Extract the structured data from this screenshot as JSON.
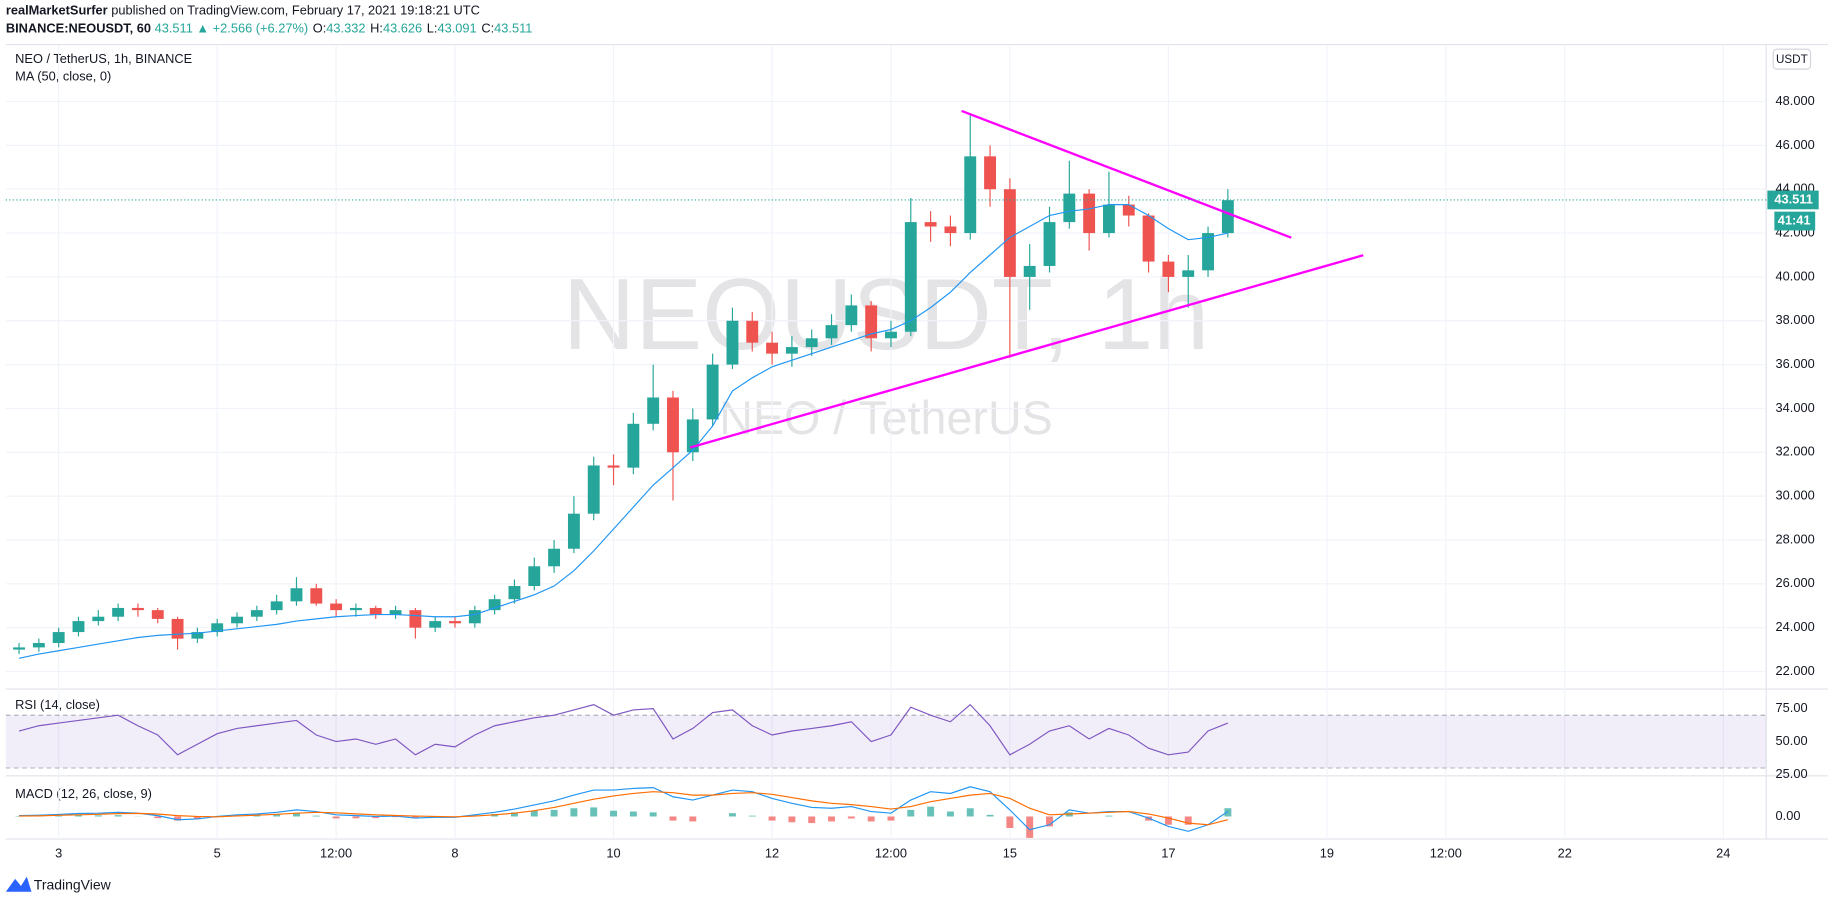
{
  "header": {
    "author": "realMarketSurfer",
    "published": "published on TradingView.com, February 17, 2021 19:18:21 UTC",
    "symbol": "BINANCE:NEOUSDT, 60",
    "last": "43.511",
    "change": "▲ +2.566 (+6.27%)",
    "ohlc": [
      {
        "label": "O:",
        "value": "43.332"
      },
      {
        "label": "H:",
        "value": "43.626"
      },
      {
        "label": "L:",
        "value": "43.091"
      },
      {
        "label": "C:",
        "value": "43.511"
      }
    ]
  },
  "footer": {
    "logo": "TradingView"
  },
  "chart_data": {
    "type": "candlestick",
    "title": "NEO / TetherUS, 1h, BINANCE",
    "watermark": "NEOUSDT, 1h",
    "watermark_sub": "NEO / TetherUS",
    "currency": "USDT",
    "up_color": "#26a69a",
    "down_color": "#ef5350",
    "grid": true,
    "x": [
      -12,
      -6,
      0,
      6,
      12,
      18,
      24,
      30,
      36,
      42,
      48,
      54,
      60,
      66,
      72,
      78,
      84,
      90,
      96,
      102,
      108,
      114,
      120,
      126,
      132,
      138,
      144,
      150,
      156,
      162,
      168,
      174,
      180,
      186,
      192,
      198,
      204,
      210,
      216,
      222,
      228,
      234,
      240,
      246,
      252,
      258,
      264,
      270,
      276,
      282,
      288,
      294,
      300,
      306,
      312,
      318,
      324,
      330,
      336,
      342,
      348,
      354
    ],
    "open": [
      23.0,
      23.1,
      23.3,
      23.8,
      24.3,
      24.5,
      24.9,
      24.8,
      24.4,
      23.5,
      23.8,
      24.2,
      24.5,
      24.8,
      25.2,
      25.8,
      25.1,
      24.8,
      24.9,
      24.6,
      24.8,
      24.0,
      24.3,
      24.2,
      24.8,
      25.3,
      25.9,
      26.8,
      27.6,
      29.2,
      31.4,
      31.3,
      33.3,
      34.5,
      32.0,
      33.5,
      36.0,
      38.0,
      37.0,
      36.5,
      36.8,
      37.2,
      37.8,
      38.7,
      37.2,
      37.5,
      42.5,
      42.3,
      42.0,
      45.5,
      44.0,
      40.0,
      40.5,
      42.5,
      43.8,
      42.0,
      43.3,
      42.8,
      40.7,
      40.0,
      40.3,
      42.0
    ],
    "high": [
      23.3,
      23.5,
      24.0,
      24.5,
      24.8,
      25.1,
      25.1,
      24.9,
      24.5,
      24.0,
      24.4,
      24.7,
      25.0,
      25.5,
      26.3,
      26.0,
      25.3,
      25.1,
      25.0,
      25.0,
      24.9,
      24.5,
      24.5,
      25.0,
      25.5,
      26.2,
      27.2,
      28.0,
      30.0,
      31.8,
      31.9,
      33.8,
      36.0,
      34.8,
      34.0,
      36.5,
      38.6,
      38.4,
      37.5,
      37.3,
      37.6,
      38.3,
      39.2,
      38.9,
      38.0,
      43.6,
      43.0,
      42.8,
      47.4,
      46.0,
      44.5,
      41.5,
      43.2,
      45.3,
      44.0,
      44.8,
      43.7,
      42.9,
      41.0,
      41.0,
      42.3,
      44.0
    ],
    "low": [
      22.8,
      22.9,
      23.1,
      23.6,
      24.1,
      24.3,
      24.5,
      24.2,
      23.0,
      23.3,
      23.6,
      24.0,
      24.3,
      24.6,
      25.0,
      25.0,
      24.5,
      24.5,
      24.4,
      24.4,
      23.5,
      23.8,
      24.0,
      24.0,
      24.6,
      25.1,
      25.7,
      26.5,
      27.4,
      28.9,
      30.5,
      31.0,
      33.0,
      29.8,
      31.6,
      33.2,
      35.8,
      36.6,
      36.0,
      35.9,
      36.4,
      36.9,
      37.5,
      36.6,
      36.8,
      37.3,
      41.6,
      41.4,
      41.7,
      43.2,
      36.3,
      38.5,
      40.2,
      42.2,
      41.2,
      41.8,
      42.3,
      40.2,
      39.3,
      38.6,
      40.0,
      41.8
    ],
    "close": [
      23.1,
      23.3,
      23.8,
      24.3,
      24.5,
      24.9,
      24.8,
      24.4,
      23.5,
      23.8,
      24.2,
      24.5,
      24.8,
      25.2,
      25.8,
      25.1,
      24.8,
      24.9,
      24.6,
      24.8,
      24.0,
      24.3,
      24.2,
      24.8,
      25.3,
      25.9,
      26.8,
      27.6,
      29.2,
      31.4,
      31.3,
      33.3,
      34.5,
      32.0,
      33.5,
      36.0,
      38.0,
      37.0,
      36.5,
      36.8,
      37.2,
      37.8,
      38.7,
      37.2,
      37.5,
      42.5,
      42.3,
      42.0,
      45.5,
      44.0,
      40.0,
      40.5,
      42.5,
      43.8,
      42.0,
      43.3,
      42.8,
      40.7,
      40.0,
      40.3,
      42.0,
      43.5
    ],
    "ma": {
      "name": "MA (50, close, 0)",
      "color": "#2196f3",
      "values": [
        22.6,
        22.8,
        22.95,
        23.1,
        23.25,
        23.4,
        23.55,
        23.65,
        23.7,
        23.75,
        23.85,
        23.95,
        24.05,
        24.15,
        24.3,
        24.4,
        24.5,
        24.55,
        24.6,
        24.6,
        24.55,
        24.5,
        24.5,
        24.6,
        24.9,
        25.2,
        25.5,
        25.9,
        26.6,
        27.5,
        28.5,
        29.5,
        30.5,
        31.3,
        32.1,
        33.2,
        34.8,
        35.4,
        35.9,
        36.2,
        36.5,
        36.8,
        37.1,
        37.4,
        37.6,
        38.0,
        38.6,
        39.3,
        40.2,
        41.0,
        41.8,
        42.3,
        42.8,
        43.0,
        43.1,
        43.3,
        43.3,
        42.8,
        42.2,
        41.7,
        41.8,
        42.0
      ]
    },
    "last_price": {
      "value": 43.511,
      "label": "43.511"
    },
    "countdown": "41:41",
    "trendlines": [
      {
        "x": [
          273.4,
          373.2
        ],
        "y": [
          47.57,
          41.79
        ],
        "color": "#ff00ff"
      },
      {
        "x": [
          191.2,
          395.0
        ],
        "y": [
          32.22,
          40.99
        ],
        "color": "#ff00ff"
      }
    ],
    "xlim": [
      -16,
      517
    ],
    "xticks": [
      {
        "value": 0,
        "label": "3"
      },
      {
        "value": 48,
        "label": "5"
      },
      {
        "value": 84,
        "label": "12:00"
      },
      {
        "value": 120,
        "label": "8"
      },
      {
        "value": 168,
        "label": "10"
      },
      {
        "value": 216,
        "label": "12"
      },
      {
        "value": 252,
        "label": "12:00"
      },
      {
        "value": 288,
        "label": "15"
      },
      {
        "value": 336,
        "label": "17"
      },
      {
        "value": 384,
        "label": "19"
      },
      {
        "value": 420,
        "label": "12:00"
      },
      {
        "value": 456,
        "label": "22"
      },
      {
        "value": 504,
        "label": "24"
      }
    ],
    "ylim": [
      21.2,
      50.6
    ],
    "yticks": [
      {
        "value": 22,
        "label": "22.000"
      },
      {
        "value": 24,
        "label": "24.000"
      },
      {
        "value": 26,
        "label": "26.000"
      },
      {
        "value": 28,
        "label": "28.000"
      },
      {
        "value": 30,
        "label": "30.000"
      },
      {
        "value": 32,
        "label": "32.000"
      },
      {
        "value": 34,
        "label": "34.000"
      },
      {
        "value": 36,
        "label": "36.000"
      },
      {
        "value": 38,
        "label": "38.000"
      },
      {
        "value": 40,
        "label": "40.000"
      },
      {
        "value": 42,
        "label": "42.000"
      },
      {
        "value": 44,
        "label": "44.000"
      },
      {
        "value": 46,
        "label": "46.000"
      },
      {
        "value": 48,
        "label": "48.000"
      }
    ],
    "rsi": {
      "title": "RSI (14, close)",
      "color": "#7e57c2",
      "bands": [
        30,
        70
      ],
      "ylim": [
        25,
        88
      ],
      "yticks": [
        {
          "value": 25,
          "label": "25.00"
        },
        {
          "value": 50,
          "label": "50.00"
        },
        {
          "value": 75,
          "label": "75.00"
        }
      ],
      "values": [
        58,
        62,
        64,
        66,
        68,
        70,
        62,
        55,
        40,
        48,
        56,
        60,
        62,
        64,
        66,
        55,
        50,
        52,
        48,
        52,
        40,
        48,
        46,
        55,
        62,
        65,
        68,
        70,
        74,
        78,
        70,
        74,
        75,
        52,
        60,
        72,
        74,
        62,
        55,
        58,
        60,
        62,
        65,
        50,
        55,
        76,
        70,
        65,
        78,
        62,
        40,
        48,
        58,
        62,
        52,
        60,
        55,
        45,
        40,
        42,
        58,
        64
      ]
    },
    "macd": {
      "title": "MACD (12, 26, close, 9)",
      "ylim": [
        -1.3,
        2.4
      ],
      "yticks": [
        {
          "value": 0,
          "label": "0.00"
        }
      ],
      "macd_color": "#2196f3",
      "signal_color": "#ff6d00",
      "hist_up_color": "#26a69a",
      "hist_down_color": "#ef5350",
      "macd": [
        0.05,
        0.08,
        0.12,
        0.18,
        0.2,
        0.25,
        0.2,
        0.05,
        -0.2,
        -0.15,
        0.0,
        0.1,
        0.15,
        0.25,
        0.4,
        0.3,
        0.1,
        0.05,
        0.0,
        0.02,
        -0.1,
        -0.05,
        -0.05,
        0.1,
        0.25,
        0.45,
        0.7,
        0.95,
        1.3,
        1.6,
        1.6,
        1.7,
        1.75,
        1.2,
        1.0,
        1.3,
        1.6,
        1.5,
        1.1,
        0.8,
        0.55,
        0.5,
        0.6,
        0.3,
        0.2,
        1.0,
        1.5,
        1.4,
        1.8,
        1.5,
        0.4,
        -0.8,
        -0.5,
        0.4,
        0.2,
        0.3,
        0.3,
        -0.1,
        -0.6,
        -0.9,
        -0.5,
        0.3
      ],
      "signal": [
        0.02,
        0.04,
        0.07,
        0.1,
        0.13,
        0.17,
        0.19,
        0.15,
        0.05,
        0.0,
        -0.02,
        0.03,
        0.08,
        0.13,
        0.2,
        0.25,
        0.22,
        0.16,
        0.1,
        0.06,
        0.02,
        0.0,
        -0.02,
        0.02,
        0.1,
        0.2,
        0.35,
        0.55,
        0.8,
        1.05,
        1.25,
        1.4,
        1.5,
        1.45,
        1.3,
        1.3,
        1.4,
        1.45,
        1.35,
        1.15,
        0.95,
        0.8,
        0.72,
        0.6,
        0.45,
        0.6,
        0.9,
        1.1,
        1.3,
        1.4,
        1.1,
        0.5,
        0.1,
        0.15,
        0.2,
        0.25,
        0.3,
        0.15,
        -0.1,
        -0.4,
        -0.5,
        -0.2
      ],
      "histogram": [
        0.03,
        0.04,
        0.05,
        0.08,
        0.07,
        0.08,
        0.01,
        -0.1,
        -0.25,
        -0.15,
        0.02,
        0.07,
        0.07,
        0.12,
        0.2,
        0.05,
        -0.12,
        -0.11,
        -0.1,
        -0.04,
        -0.12,
        -0.05,
        -0.03,
        0.08,
        0.15,
        0.25,
        0.35,
        0.4,
        0.5,
        0.55,
        0.35,
        0.3,
        0.25,
        -0.25,
        -0.3,
        0.0,
        0.2,
        0.05,
        -0.25,
        -0.35,
        -0.4,
        -0.3,
        -0.12,
        -0.3,
        -0.25,
        0.4,
        0.6,
        0.3,
        0.5,
        0.1,
        -0.7,
        -1.3,
        -0.6,
        0.25,
        0.0,
        0.05,
        0.0,
        -0.25,
        -0.5,
        -0.5,
        0.0,
        0.5
      ]
    }
  }
}
